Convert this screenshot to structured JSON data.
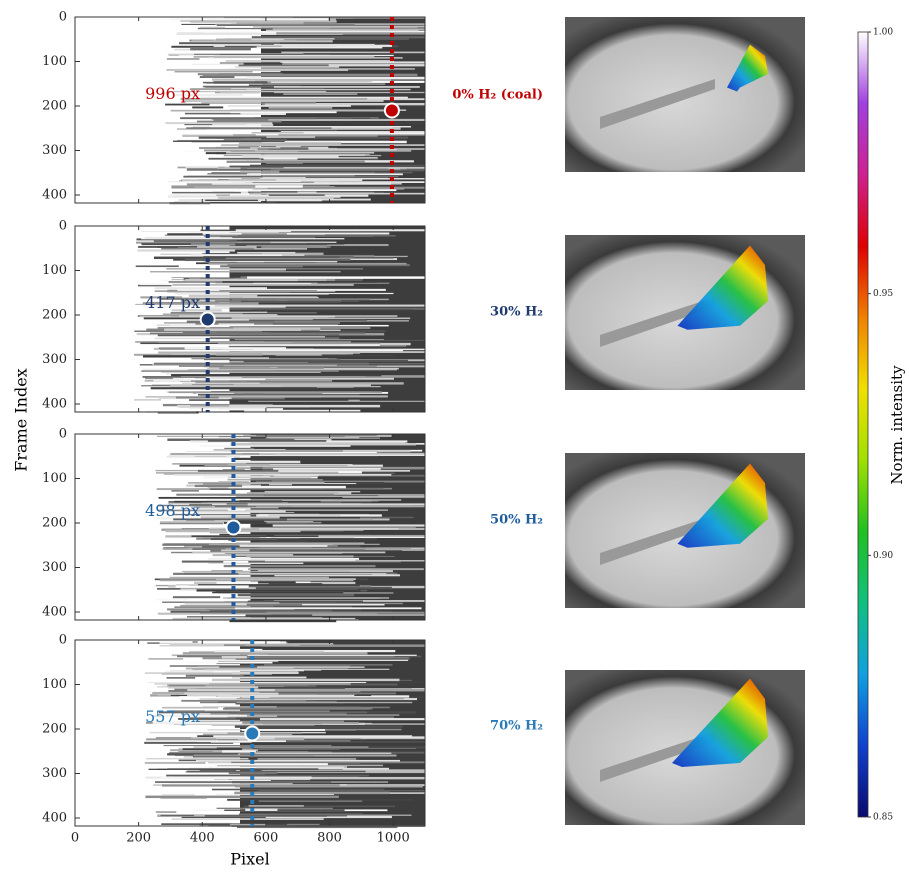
{
  "figure": {
    "xlabel": "Pixel",
    "ylabel": "Frame Index"
  },
  "chart_data": [
    {
      "type": "scatter",
      "label": "0% H₂  (coal)",
      "x": [
        996
      ],
      "values": [
        210
      ],
      "value_labels": [
        "996 px"
      ],
      "color": "#c00000",
      "xlim": [
        0,
        1100
      ],
      "ylim": [
        0,
        418
      ],
      "y_inverted": true,
      "yticks": [
        0,
        100,
        200,
        300,
        400
      ],
      "xticks": [
        0,
        200,
        400,
        600,
        800,
        1000
      ]
    },
    {
      "type": "scatter",
      "label": "30% H₂",
      "x": [
        417
      ],
      "values": [
        210
      ],
      "value_labels": [
        "417 px"
      ],
      "color": "#1f3a6e",
      "xlim": [
        0,
        1100
      ],
      "ylim": [
        0,
        418
      ],
      "y_inverted": true,
      "yticks": [
        0,
        100,
        200,
        300,
        400
      ],
      "xticks": [
        0,
        200,
        400,
        600,
        800,
        1000
      ]
    },
    {
      "type": "scatter",
      "label": "50% H₂",
      "x": [
        498
      ],
      "values": [
        210
      ],
      "value_labels": [
        "498 px"
      ],
      "color": "#1f5c9c",
      "xlim": [
        0,
        1100
      ],
      "ylim": [
        0,
        418
      ],
      "y_inverted": true,
      "yticks": [
        0,
        100,
        200,
        300,
        400
      ],
      "xticks": [
        0,
        200,
        400,
        600,
        800,
        1000
      ]
    },
    {
      "type": "scatter",
      "label": "70% H₂",
      "x": [
        557
      ],
      "values": [
        210
      ],
      "value_labels": [
        "557 px"
      ],
      "color": "#2a7ab8",
      "xlim": [
        0,
        1100
      ],
      "ylim": [
        0,
        418
      ],
      "y_inverted": true,
      "yticks": [
        0,
        100,
        200,
        300,
        400
      ],
      "xticks": [
        0,
        200,
        400,
        600,
        800,
        1000
      ]
    },
    {
      "type": "colorbar",
      "label": "Norm. intensity",
      "ylim": [
        0.85,
        1.0
      ],
      "yticks": [
        0.85,
        {
          "value": 0.9,
          "label": "0.90"
        },
        0.95,
        {
          "value": 1.0,
          "label": "1.00"
        }
      ],
      "colors": [
        "#0a0a6e",
        "#1040d0",
        "#10a0e0",
        "#10c080",
        "#20c020",
        "#a0e000",
        "#f0e000",
        "#f08000",
        "#e00000",
        "#d02090",
        "#a040e0",
        "#ffffff"
      ]
    }
  ]
}
